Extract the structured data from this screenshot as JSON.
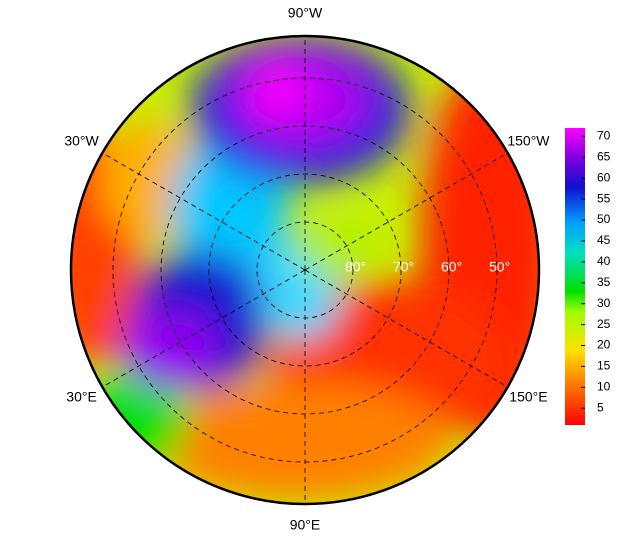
{
  "map": {
    "longitude_labels": [
      {
        "value": -90,
        "label": "90°W"
      },
      {
        "value": -30,
        "label": "30°W"
      },
      {
        "value": -150,
        "label": "150°W"
      },
      {
        "value": 30,
        "label": "30°E"
      },
      {
        "value": 150,
        "label": "150°E"
      },
      {
        "value": 90,
        "label": "90°E"
      }
    ],
    "latitude_labels": [
      {
        "value": 80,
        "label": "80°"
      },
      {
        "value": 70,
        "label": "70°"
      },
      {
        "value": 60,
        "label": "60°"
      },
      {
        "value": 50,
        "label": "50°"
      }
    ],
    "colorbar": {
      "range": [
        1,
        72
      ],
      "ticks": [
        5,
        10,
        15,
        20,
        25,
        30,
        35,
        40,
        45,
        50,
        55,
        60,
        65,
        70
      ]
    }
  }
}
